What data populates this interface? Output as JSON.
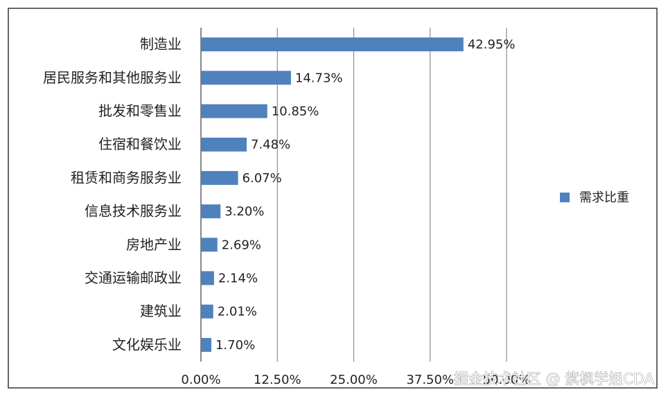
{
  "chart_data": {
    "type": "bar",
    "orientation": "horizontal",
    "categories": [
      "制造业",
      "居民服务和其他服务业",
      "批发和零售业",
      "住宿和餐饮业",
      "租赁和商务服务业",
      "信息技术服务业",
      "房地产业",
      "交通运输邮政业",
      "建筑业",
      "文化娱乐业"
    ],
    "series": [
      {
        "name": "需求比重",
        "color": "#4f81bd",
        "values": [
          42.95,
          14.73,
          10.85,
          7.48,
          6.07,
          3.2,
          2.69,
          2.14,
          2.01,
          1.7
        ],
        "value_labels": [
          "42.95%",
          "14.73%",
          "10.85%",
          "7.48%",
          "6.07%",
          "3.20%",
          "2.69%",
          "2.14%",
          "2.01%",
          "1.70%"
        ]
      }
    ],
    "xlim": [
      0,
      50
    ],
    "xticks": [
      {
        "value": 0,
        "label": "0.00%"
      },
      {
        "value": 12.5,
        "label": "12.50%"
      },
      {
        "value": 25,
        "label": "25.00%"
      },
      {
        "value": 37.5,
        "label": "37.50%"
      },
      {
        "value": 50,
        "label": "50.00%"
      }
    ],
    "grid": true,
    "legend": "right",
    "watermark": "掘金技术社区 @ 紫枫学姐CDA"
  }
}
